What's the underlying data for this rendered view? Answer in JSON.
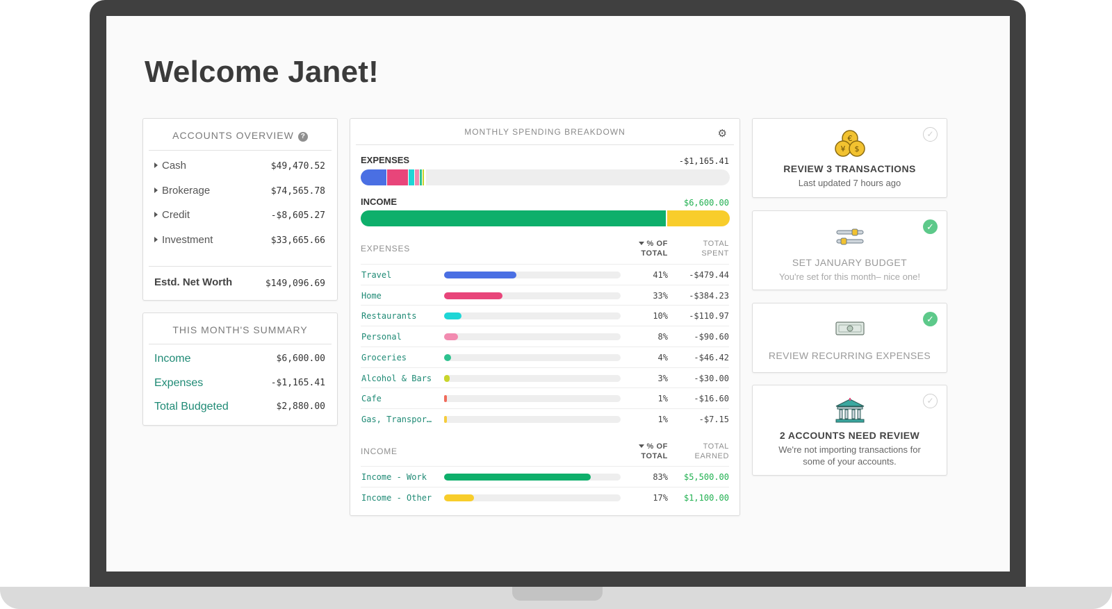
{
  "page": {
    "title": "Welcome Janet!"
  },
  "accounts_overview": {
    "header": "ACCOUNTS OVERVIEW",
    "help_glyph": "?",
    "accounts": [
      {
        "label": "Cash",
        "amount": "$49,470.52"
      },
      {
        "label": "Brokerage",
        "amount": "$74,565.78"
      },
      {
        "label": "Credit",
        "amount": "-$8,605.27"
      },
      {
        "label": "Investment",
        "amount": "$33,665.66"
      }
    ],
    "net_worth_label": "Estd. Net Worth",
    "net_worth_value": "$149,096.69"
  },
  "monthly_summary": {
    "header": "THIS MONTH'S SUMMARY",
    "rows": [
      {
        "label": "Income",
        "amount": "$6,600.00"
      },
      {
        "label": "Expenses",
        "amount": "-$1,165.41"
      },
      {
        "label": "Total Budgeted",
        "amount": "$2,880.00"
      }
    ]
  },
  "spending": {
    "header": "MONTHLY SPENDING BREAKDOWN",
    "gear_glyph": "⚙",
    "expenses_label": "EXPENSES",
    "expenses_total": "-$1,165.41",
    "income_label": "INCOME",
    "income_total": "$6,600.00",
    "expense_table": {
      "title": "EXPENSES",
      "col_pct_1": "% OF",
      "col_pct_2": "TOTAL",
      "col_total_1": "TOTAL",
      "col_total_2": "SPENT",
      "rows": [
        {
          "name": "Travel",
          "pct": "41%",
          "total": "-$479.44",
          "share": 0.41,
          "color": "#4a6fe3"
        },
        {
          "name": "Home",
          "pct": "33%",
          "total": "-$384.23",
          "share": 0.33,
          "color": "#e8457a"
        },
        {
          "name": "Restaurants",
          "pct": "10%",
          "total": "-$110.97",
          "share": 0.1,
          "color": "#1fd6d6"
        },
        {
          "name": "Personal",
          "pct": "8%",
          "total": "-$90.60",
          "share": 0.08,
          "color": "#f28bb0"
        },
        {
          "name": "Groceries",
          "pct": "4%",
          "total": "-$46.42",
          "share": 0.04,
          "color": "#2ec28f"
        },
        {
          "name": "Alcohol & Bars",
          "pct": "3%",
          "total": "-$30.00",
          "share": 0.03,
          "color": "#c9d52b"
        },
        {
          "name": "Cafe",
          "pct": "1%",
          "total": "-$16.60",
          "share": 0.01,
          "color": "#f06b5b"
        },
        {
          "name": "Gas, Transportation",
          "pct": "1%",
          "total": "-$7.15",
          "share": 0.01,
          "color": "#f5cc3d"
        }
      ]
    },
    "income_table": {
      "title": "INCOME",
      "col_pct_1": "% OF",
      "col_pct_2": "TOTAL",
      "col_total_1": "TOTAL",
      "col_total_2": "EARNED",
      "rows": [
        {
          "name": "Income - Work",
          "pct": "83%",
          "total": "$5,500.00",
          "share": 0.83,
          "color": "#0eaf6b"
        },
        {
          "name": "Income - Other",
          "pct": "17%",
          "total": "$1,100.00",
          "share": 0.17,
          "color": "#f8cd2b"
        }
      ]
    }
  },
  "tasks": [
    {
      "title": "REVIEW 3 TRANSACTIONS",
      "subtitle": "Last updated 7 hours ago",
      "done": false,
      "icon": "coins-icon"
    },
    {
      "title": "SET JANUARY BUDGET",
      "subtitle": "You're set for this month– nice one!",
      "done": true,
      "icon": "sliders-icon"
    },
    {
      "title": "REVIEW RECURRING EXPENSES",
      "subtitle": "",
      "done": true,
      "icon": "cash-icon"
    },
    {
      "title": "2 ACCOUNTS NEED REVIEW",
      "subtitle": "We're not importing transactions for some of your accounts.",
      "done": false,
      "icon": "bank-icon"
    }
  ],
  "check_glyph": "✓"
}
